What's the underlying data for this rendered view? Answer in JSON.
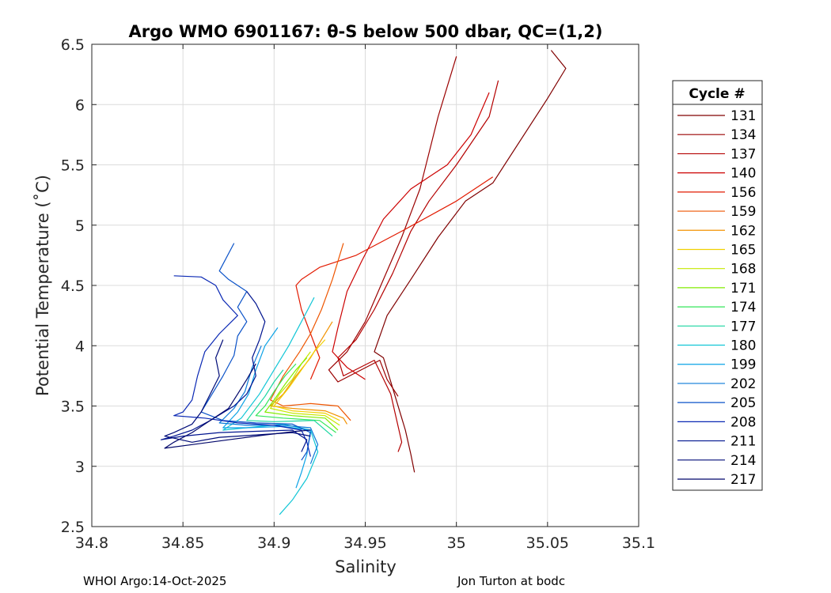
{
  "chart_data": {
    "type": "line",
    "title": "Argo WMO 6901167: θ-S below 500 dbar,  QC=(1,2)",
    "xlabel": "Salinity",
    "ylabel": "Potential Temperature (˚C)",
    "xlim": [
      34.8,
      35.1
    ],
    "ylim": [
      2.5,
      6.5
    ],
    "xticks": [
      34.8,
      34.85,
      34.9,
      34.95,
      35,
      35.05,
      35.1
    ],
    "xtick_labels": [
      "34.8",
      "34.85",
      "34.9",
      "34.95",
      "35",
      "35.05",
      "35.1"
    ],
    "yticks": [
      2.5,
      3,
      3.5,
      4,
      4.5,
      5,
      5.5,
      6,
      6.5
    ],
    "ytick_labels": [
      "2.5",
      "3",
      "3.5",
      "4",
      "4.5",
      "5",
      "5.5",
      "6",
      "6.5"
    ],
    "grid": true,
    "legend": {
      "title": "Cycle #",
      "placement": "outside-right"
    },
    "series": [
      {
        "name": "131",
        "color": "#800000",
        "points": [
          [
            35.052,
            6.45
          ],
          [
            35.06,
            6.3
          ],
          [
            35.05,
            6.05
          ],
          [
            35.02,
            5.35
          ],
          [
            35.005,
            5.2
          ],
          [
            34.99,
            4.9
          ],
          [
            34.975,
            4.55
          ],
          [
            34.962,
            4.25
          ],
          [
            34.955,
            3.95
          ],
          [
            34.96,
            3.9
          ],
          [
            34.965,
            3.65
          ],
          [
            34.972,
            3.3
          ],
          [
            34.975,
            3.1
          ],
          [
            34.977,
            2.95
          ]
        ]
      },
      {
        "name": "134",
        "color": "#9a0000",
        "points": [
          [
            35.0,
            6.4
          ],
          [
            34.99,
            5.9
          ],
          [
            34.98,
            5.3
          ],
          [
            34.97,
            4.9
          ],
          [
            34.96,
            4.55
          ],
          [
            34.95,
            4.2
          ],
          [
            34.94,
            3.95
          ],
          [
            34.93,
            3.8
          ],
          [
            34.935,
            3.7
          ],
          [
            34.958,
            3.88
          ],
          [
            34.962,
            3.72
          ],
          [
            34.968,
            3.58
          ]
        ]
      },
      {
        "name": "137",
        "color": "#b40000",
        "points": [
          [
            35.023,
            6.2
          ],
          [
            35.018,
            5.9
          ],
          [
            35.0,
            5.5
          ],
          [
            34.985,
            5.2
          ],
          [
            34.975,
            4.95
          ],
          [
            34.965,
            4.6
          ],
          [
            34.955,
            4.3
          ],
          [
            34.945,
            4.05
          ],
          [
            34.935,
            3.9
          ],
          [
            34.938,
            3.75
          ],
          [
            34.955,
            3.88
          ],
          [
            34.964,
            3.6
          ],
          [
            34.97,
            3.2
          ],
          [
            34.968,
            3.12
          ]
        ]
      },
      {
        "name": "140",
        "color": "#cc0000",
        "points": [
          [
            35.018,
            6.1
          ],
          [
            35.008,
            5.75
          ],
          [
            34.995,
            5.5
          ],
          [
            34.975,
            5.3
          ],
          [
            34.96,
            5.05
          ],
          [
            34.948,
            4.7
          ],
          [
            34.94,
            4.45
          ],
          [
            34.935,
            4.15
          ],
          [
            34.932,
            3.95
          ],
          [
            34.94,
            3.82
          ],
          [
            34.95,
            3.72
          ]
        ]
      },
      {
        "name": "156",
        "color": "#e21a00",
        "points": [
          [
            35.02,
            5.4
          ],
          [
            35.0,
            5.2
          ],
          [
            34.97,
            4.95
          ],
          [
            34.945,
            4.75
          ],
          [
            34.925,
            4.65
          ],
          [
            34.915,
            4.55
          ],
          [
            34.912,
            4.5
          ],
          [
            34.915,
            4.3
          ],
          [
            34.92,
            4.1
          ],
          [
            34.925,
            3.9
          ],
          [
            34.92,
            3.72
          ]
        ]
      },
      {
        "name": "159",
        "color": "#ee5500",
        "points": [
          [
            34.938,
            4.85
          ],
          [
            34.932,
            4.55
          ],
          [
            34.926,
            4.3
          ],
          [
            34.92,
            4.1
          ],
          [
            34.914,
            3.95
          ],
          [
            34.905,
            3.75
          ],
          [
            34.898,
            3.55
          ],
          [
            34.905,
            3.5
          ],
          [
            34.92,
            3.52
          ],
          [
            34.935,
            3.5
          ],
          [
            34.942,
            3.38
          ]
        ]
      },
      {
        "name": "162",
        "color": "#f29200",
        "points": [
          [
            34.932,
            4.2
          ],
          [
            34.926,
            4.05
          ],
          [
            34.92,
            3.9
          ],
          [
            34.912,
            3.75
          ],
          [
            34.905,
            3.6
          ],
          [
            34.898,
            3.5
          ],
          [
            34.91,
            3.48
          ],
          [
            34.928,
            3.46
          ],
          [
            34.938,
            3.4
          ],
          [
            34.94,
            3.35
          ]
        ]
      },
      {
        "name": "165",
        "color": "#f0d000",
        "points": [
          [
            34.928,
            4.05
          ],
          [
            34.922,
            3.95
          ],
          [
            34.915,
            3.8
          ],
          [
            34.908,
            3.65
          ],
          [
            34.9,
            3.5
          ],
          [
            34.91,
            3.46
          ],
          [
            34.928,
            3.44
          ],
          [
            34.936,
            3.38
          ]
        ]
      },
      {
        "name": "168",
        "color": "#c6e800",
        "points": [
          [
            34.92,
            3.95
          ],
          [
            34.915,
            3.85
          ],
          [
            34.91,
            3.72
          ],
          [
            34.903,
            3.6
          ],
          [
            34.898,
            3.48
          ],
          [
            34.91,
            3.44
          ],
          [
            34.928,
            3.42
          ],
          [
            34.936,
            3.34
          ]
        ]
      },
      {
        "name": "171",
        "color": "#82ec00",
        "points": [
          [
            34.918,
            3.9
          ],
          [
            34.912,
            3.8
          ],
          [
            34.906,
            3.68
          ],
          [
            34.9,
            3.55
          ],
          [
            34.895,
            3.45
          ],
          [
            34.91,
            3.42
          ],
          [
            34.928,
            3.4
          ],
          [
            34.935,
            3.3
          ]
        ]
      },
      {
        "name": "174",
        "color": "#33e65a",
        "points": [
          [
            34.912,
            3.85
          ],
          [
            34.906,
            3.75
          ],
          [
            34.9,
            3.62
          ],
          [
            34.895,
            3.5
          ],
          [
            34.89,
            3.42
          ],
          [
            34.905,
            3.4
          ],
          [
            34.925,
            3.38
          ],
          [
            34.934,
            3.28
          ]
        ]
      },
      {
        "name": "177",
        "color": "#1ad6a0",
        "points": [
          [
            34.905,
            3.8
          ],
          [
            34.9,
            3.7
          ],
          [
            34.895,
            3.58
          ],
          [
            34.89,
            3.48
          ],
          [
            34.885,
            3.38
          ],
          [
            34.9,
            3.37
          ],
          [
            34.922,
            3.38
          ],
          [
            34.932,
            3.25
          ]
        ]
      },
      {
        "name": "180",
        "color": "#12c6d6",
        "points": [
          [
            34.922,
            4.4
          ],
          [
            34.915,
            4.2
          ],
          [
            34.908,
            4.0
          ],
          [
            34.9,
            3.8
          ],
          [
            34.892,
            3.6
          ],
          [
            34.882,
            3.4
          ],
          [
            34.872,
            3.3
          ],
          [
            34.885,
            3.32
          ],
          [
            34.905,
            3.35
          ],
          [
            34.92,
            3.3
          ],
          [
            34.924,
            3.12
          ],
          [
            34.918,
            2.9
          ],
          [
            34.91,
            2.72
          ],
          [
            34.903,
            2.6
          ]
        ]
      },
      {
        "name": "199",
        "color": "#0aa2e6",
        "points": [
          [
            34.902,
            4.15
          ],
          [
            34.895,
            4.0
          ],
          [
            34.89,
            3.8
          ],
          [
            34.886,
            3.6
          ],
          [
            34.88,
            3.45
          ],
          [
            34.872,
            3.32
          ],
          [
            34.885,
            3.32
          ],
          [
            34.905,
            3.33
          ],
          [
            34.92,
            3.3
          ],
          [
            34.918,
            3.1
          ],
          [
            34.915,
            2.95
          ],
          [
            34.912,
            2.82
          ]
        ]
      },
      {
        "name": "202",
        "color": "#0a7ad8",
        "points": [
          [
            34.893,
            4.0
          ],
          [
            34.888,
            3.82
          ],
          [
            34.884,
            3.62
          ],
          [
            34.878,
            3.48
          ],
          [
            34.87,
            3.36
          ],
          [
            34.885,
            3.34
          ],
          [
            34.905,
            3.34
          ],
          [
            34.92,
            3.32
          ],
          [
            34.924,
            3.18
          ],
          [
            34.92,
            3.02
          ]
        ]
      },
      {
        "name": "205",
        "color": "#0a52c8",
        "points": [
          [
            34.878,
            4.85
          ],
          [
            34.87,
            4.62
          ],
          [
            34.875,
            4.55
          ],
          [
            34.885,
            4.45
          ],
          [
            34.88,
            4.32
          ],
          [
            34.885,
            4.2
          ],
          [
            34.88,
            4.08
          ],
          [
            34.878,
            3.92
          ],
          [
            34.872,
            3.75
          ],
          [
            34.866,
            3.6
          ],
          [
            34.86,
            3.45
          ],
          [
            34.872,
            3.38
          ],
          [
            34.89,
            3.36
          ],
          [
            34.91,
            3.35
          ],
          [
            34.92,
            3.28
          ],
          [
            34.918,
            3.12
          ],
          [
            34.915,
            3.05
          ]
        ]
      },
      {
        "name": "208",
        "color": "#0a28b4",
        "points": [
          [
            34.845,
            4.58
          ],
          [
            34.86,
            4.57
          ],
          [
            34.868,
            4.5
          ],
          [
            34.872,
            4.38
          ],
          [
            34.88,
            4.25
          ],
          [
            34.87,
            4.1
          ],
          [
            34.862,
            3.95
          ],
          [
            34.858,
            3.75
          ],
          [
            34.855,
            3.55
          ],
          [
            34.85,
            3.45
          ],
          [
            34.845,
            3.42
          ],
          [
            34.862,
            3.4
          ],
          [
            34.88,
            3.36
          ],
          [
            34.9,
            3.34
          ],
          [
            34.915,
            3.3
          ],
          [
            34.918,
            3.2
          ],
          [
            34.92,
            3.08
          ]
        ]
      },
      {
        "name": "211",
        "color": "#00148f",
        "points": [
          [
            34.885,
            4.45
          ],
          [
            34.89,
            4.35
          ],
          [
            34.895,
            4.2
          ],
          [
            34.892,
            4.05
          ],
          [
            34.888,
            3.9
          ],
          [
            34.89,
            3.75
          ],
          [
            34.885,
            3.6
          ],
          [
            34.878,
            3.5
          ],
          [
            34.865,
            3.38
          ],
          [
            34.855,
            3.3
          ],
          [
            34.845,
            3.25
          ],
          [
            34.838,
            3.22
          ],
          [
            34.85,
            3.25
          ],
          [
            34.87,
            3.28
          ],
          [
            34.89,
            3.29
          ],
          [
            34.91,
            3.3
          ],
          [
            34.918,
            3.22
          ],
          [
            34.915,
            3.12
          ]
        ]
      },
      {
        "name": "214",
        "color": "#000c78",
        "points": [
          [
            34.872,
            4.05
          ],
          [
            34.868,
            3.9
          ],
          [
            34.87,
            3.75
          ],
          [
            34.865,
            3.6
          ],
          [
            34.86,
            3.45
          ],
          [
            34.855,
            3.35
          ],
          [
            34.845,
            3.28
          ],
          [
            34.84,
            3.25
          ],
          [
            34.855,
            3.2
          ],
          [
            34.87,
            3.24
          ],
          [
            34.89,
            3.26
          ],
          [
            34.91,
            3.28
          ],
          [
            34.92,
            3.25
          ]
        ]
      },
      {
        "name": "217",
        "color": "#00066a",
        "points": [
          [
            34.89,
            3.85
          ],
          [
            34.885,
            3.72
          ],
          [
            34.88,
            3.6
          ],
          [
            34.875,
            3.48
          ],
          [
            34.865,
            3.38
          ],
          [
            34.855,
            3.28
          ],
          [
            34.845,
            3.2
          ],
          [
            34.84,
            3.15
          ],
          [
            34.855,
            3.18
          ],
          [
            34.875,
            3.22
          ],
          [
            34.895,
            3.26
          ],
          [
            34.912,
            3.29
          ],
          [
            34.92,
            3.3
          ]
        ]
      }
    ]
  },
  "footer": {
    "left": "WHOI Argo:14-Oct-2025",
    "right": "Jon Turton at bodc"
  }
}
